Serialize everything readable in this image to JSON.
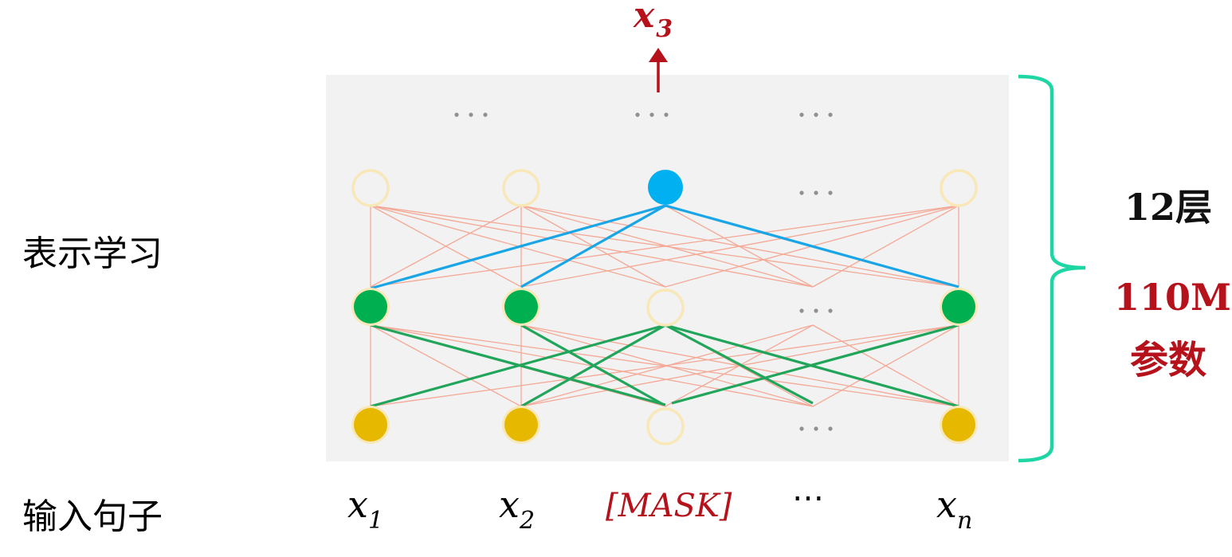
{
  "labels": {
    "representation": "表示学习",
    "input_sentence": "输入句子",
    "layers": "12层",
    "params_value": "110M",
    "params_label": "参数"
  },
  "output": {
    "base": "x",
    "sub": "3"
  },
  "tokens": [
    {
      "base": "x",
      "sub": "1"
    },
    {
      "base": "x",
      "sub": "2"
    },
    {
      "mask": "[MASK]"
    },
    {
      "ellipsis": "⋯"
    },
    {
      "base": "x",
      "sub": "n"
    }
  ],
  "ellipsis": "···",
  "colors": {
    "panel": "#f2f2f2",
    "hollow_node": "#f8e8b8",
    "input_node": "#e6b800",
    "middle_node": "#00b050",
    "top_node": "#00b0f0",
    "thin_edge": "#f4a895",
    "green_edge": "#21a55a",
    "blue_edge": "#1aa6e6",
    "output_red": "#b5121b",
    "brace": "#1ed6a4"
  }
}
